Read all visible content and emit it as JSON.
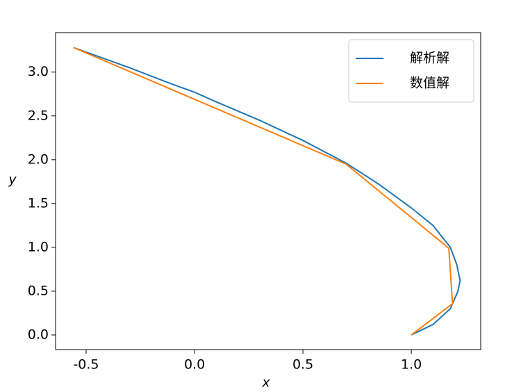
{
  "chart_data": {
    "type": "line",
    "x_label": "x",
    "y_label": "y",
    "xlim": [
      -0.641,
      1.32
    ],
    "ylim": [
      -0.167,
      3.45
    ],
    "xticks": [
      -0.5,
      0.0,
      0.5,
      1.0
    ],
    "yticks": [
      0.0,
      0.5,
      1.0,
      1.5,
      2.0,
      2.5,
      3.0
    ],
    "legend": "upper right",
    "series": [
      {
        "name": "解析解",
        "color": "#1f77b4",
        "x": [
          1.0,
          1.1,
          1.18,
          1.215,
          1.225,
          1.21,
          1.18,
          1.1,
          1.0,
          0.85,
          0.7,
          0.5,
          0.3,
          0.1,
          0.0,
          -0.1,
          -0.3,
          -0.558
        ],
        "values": [
          0.0,
          0.12,
          0.3,
          0.5,
          0.62,
          0.8,
          1.0,
          1.25,
          1.45,
          1.72,
          1.96,
          2.22,
          2.45,
          2.66,
          2.77,
          2.86,
          3.05,
          3.28
        ]
      },
      {
        "name": "数值解",
        "color": "#ff7f0e",
        "x": [
          1.0,
          1.19,
          1.173,
          0.699,
          -0.558
        ],
        "values": [
          0.0,
          0.357,
          0.99,
          1.95,
          3.28
        ]
      }
    ]
  }
}
